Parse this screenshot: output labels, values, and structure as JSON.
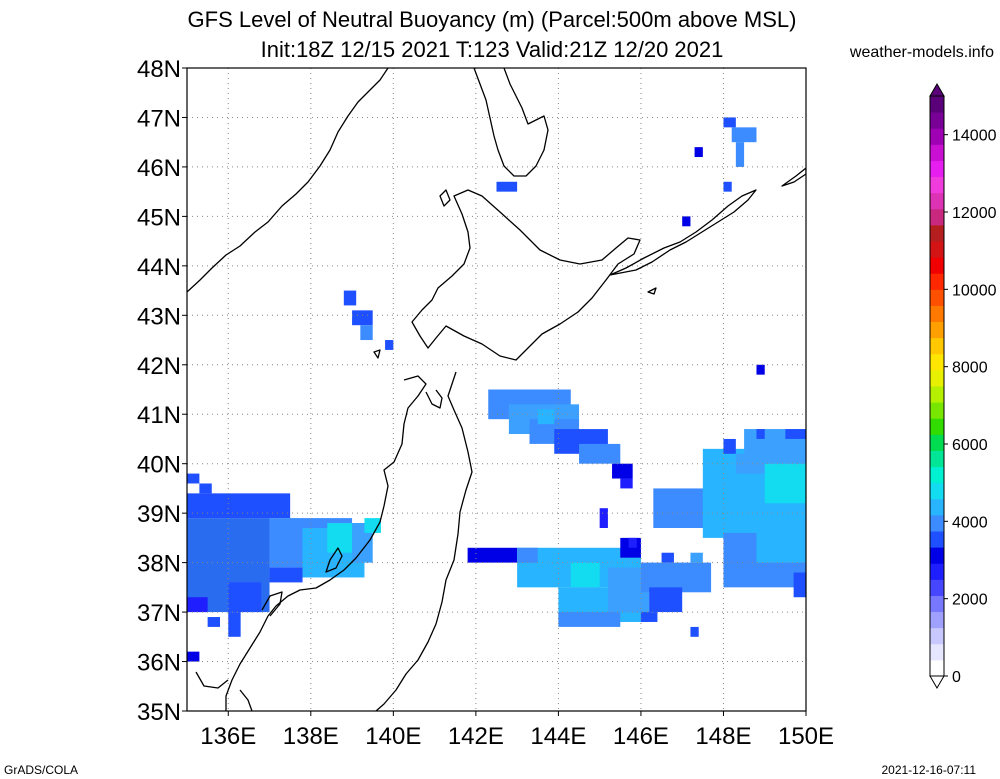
{
  "title_line1": "GFS Level of Neutral Buoyancy (m) (Parcel:500m above MSL)",
  "title_line2": "Init:18Z 12/15 2021 T:123 Valid:21Z 12/20 2021",
  "site": "weather-models.info",
  "footer_left": "GrADS/COLA",
  "footer_right": "2021-12-16-07:11",
  "map": {
    "lon_range": [
      135,
      150
    ],
    "lat_range": [
      35,
      48
    ],
    "lon_ticks": [
      "136E",
      "138E",
      "140E",
      "142E",
      "144E",
      "146E",
      "148E",
      "150E"
    ],
    "lat_ticks": [
      "35N",
      "36N",
      "37N",
      "38N",
      "39N",
      "40N",
      "41N",
      "42N",
      "43N",
      "44N",
      "45N",
      "46N",
      "47N",
      "48N"
    ],
    "grid": "dotted"
  },
  "colorbar": {
    "range": [
      0,
      15000
    ],
    "labels": [
      "0",
      "2000",
      "4000",
      "6000",
      "8000",
      "10000",
      "12000",
      "14000"
    ],
    "colors": [
      "#ffffff",
      "#e6e6ff",
      "#c8c8ff",
      "#a0a0ff",
      "#7878ff",
      "#4646ff",
      "#1e1eff",
      "#0000e6",
      "#1e50ff",
      "#3c8cff",
      "#28b4ff",
      "#14dcf0",
      "#00f0d2",
      "#00e696",
      "#00dc50",
      "#32dc00",
      "#78e600",
      "#b4f000",
      "#e6f000",
      "#ffe600",
      "#ffc800",
      "#ffa000",
      "#ff7800",
      "#ff5000",
      "#ff2800",
      "#f00000",
      "#d21414",
      "#b41e1e",
      "#c8287d",
      "#dc32b4",
      "#f03cdc",
      "#e61ef0",
      "#c80fd2",
      "#a000b4",
      "#780096",
      "#5a0078"
    ]
  },
  "field_regions": [
    {
      "region": "Sea of Japan west of Honshu",
      "value_range_m": [
        1500,
        3800
      ]
    },
    {
      "region": "Pacific east of Tohoku",
      "value_range_m": [
        1500,
        3500
      ]
    },
    {
      "region": "Pacific south of Hokkaido",
      "value_range_m": [
        1800,
        2800
      ]
    },
    {
      "region": "Pacific near 150E 39N",
      "value_range_m": [
        2000,
        3700
      ]
    }
  ]
}
